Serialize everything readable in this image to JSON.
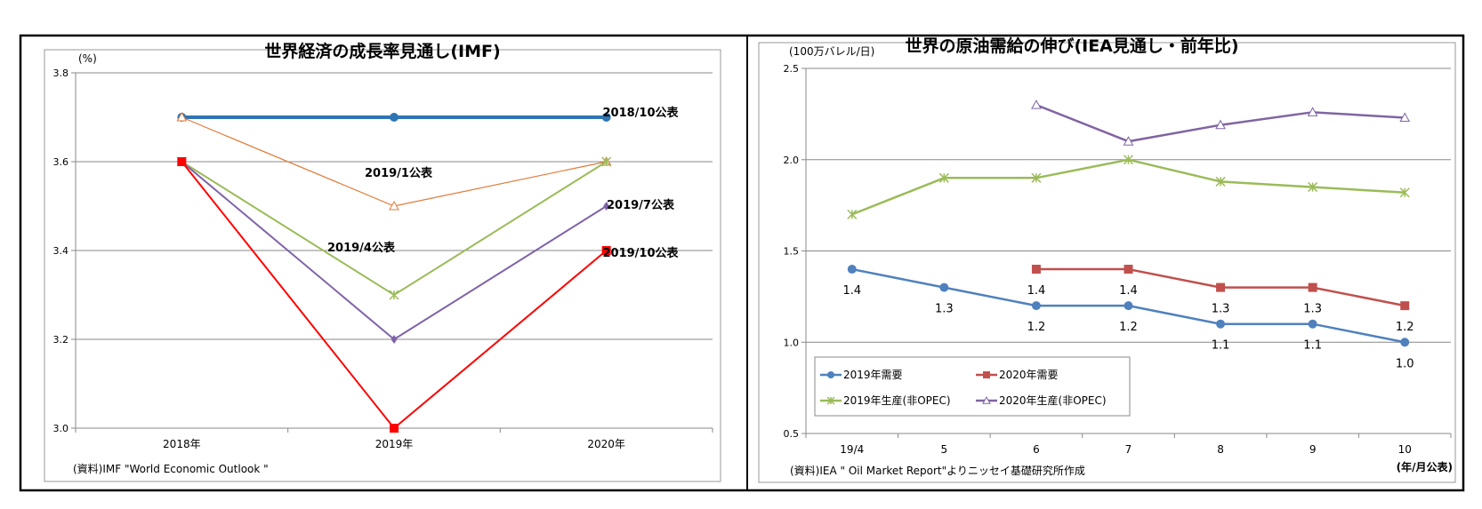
{
  "chart_data": [
    {
      "type": "line",
      "title": "世界経済の成長率見通し(IMF)",
      "ylabel": "(%)",
      "xlabel": "",
      "source": "(資料)IMF \"World Economic Outlook \"",
      "categories": [
        "2018年",
        "2019年",
        "2020年"
      ],
      "ylim": [
        3.0,
        3.8
      ],
      "yticks": [
        "3.0",
        "3.2",
        "3.4",
        "3.6",
        "3.8"
      ],
      "grid": true,
      "series": [
        {
          "name": "2018/10公表",
          "values": [
            3.7,
            3.7,
            3.7
          ],
          "color": "#2e75b6",
          "marker": "circle"
        },
        {
          "name": "2019/1公表",
          "values": [
            3.7,
            3.5,
            3.6
          ],
          "color": "#e07b39",
          "marker": "triangle"
        },
        {
          "name": "2019/4公表",
          "values": [
            3.6,
            3.3,
            3.6
          ],
          "color": "#9bbb59",
          "marker": "star"
        },
        {
          "name": "2019/7公表",
          "values": [
            3.6,
            3.2,
            3.5
          ],
          "color": "#7f63a8",
          "marker": "diamond"
        },
        {
          "name": "2019/10公表",
          "values": [
            3.6,
            3.0,
            3.4
          ],
          "color": "#ff0000",
          "marker": "square"
        }
      ]
    },
    {
      "type": "line",
      "title": "世界の原油需給の伸び(IEA見通し・前年比)",
      "ylabel": "(100万バレル/日)",
      "xlabel": "(年/月公表)",
      "source": "(資料)IEA \" Oil Market Report\"よりニッセイ基礎研究所作成",
      "categories": [
        "19/4",
        "5",
        "6",
        "7",
        "8",
        "9",
        "10"
      ],
      "ylim": [
        0.5,
        2.5
      ],
      "yticks": [
        "0.5",
        "1.0",
        "1.5",
        "2.0",
        "2.5"
      ],
      "grid": true,
      "legend": "bottom-left",
      "series": [
        {
          "name": "2019年需要",
          "values": [
            1.4,
            1.3,
            1.2,
            1.2,
            1.1,
            1.1,
            1.0
          ],
          "color": "#4f81bd",
          "marker": "circle",
          "labels": [
            "1.4",
            "1.3",
            "1.2",
            "1.2",
            "1.1",
            "1.1",
            "1.0"
          ]
        },
        {
          "name": "2020年需要",
          "values": [
            null,
            null,
            1.4,
            1.4,
            1.3,
            1.3,
            1.2
          ],
          "color": "#c0504d",
          "marker": "square",
          "labels": [
            null,
            null,
            "1.4",
            "1.4",
            "1.3",
            "1.3",
            "1.2"
          ]
        },
        {
          "name": "2019年生産(非OPEC)",
          "values": [
            1.7,
            1.9,
            1.9,
            2.0,
            1.88,
            1.85,
            1.82
          ],
          "color": "#9bbb59",
          "marker": "star"
        },
        {
          "name": "2020年生産(非OPEC)",
          "values": [
            null,
            null,
            2.3,
            2.1,
            2.19,
            2.26,
            2.23
          ],
          "color": "#8064a2",
          "marker": "triangle"
        }
      ]
    }
  ]
}
